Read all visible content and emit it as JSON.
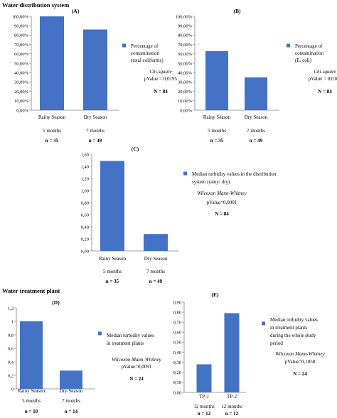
{
  "sections": {
    "distribution": "Water distribution system",
    "treatment": "Water treatment plant"
  },
  "chart_data": [
    {
      "id": "A",
      "type": "bar",
      "title": "(A)",
      "categories": [
        "Rainy Season",
        "Dry Season"
      ],
      "sublabels": [
        "5 months",
        "7 months"
      ],
      "counts": [
        "n = 35",
        "n = 49"
      ],
      "values": [
        1.0,
        0.86
      ],
      "ylim": [
        0,
        1.0
      ],
      "yticks": [
        "0,00%",
        "10,00%",
        "20,00%",
        "30,00%",
        "40,00%",
        "50,00%",
        "60,00%",
        "70,00%",
        "80,00%",
        "90,00%",
        "100,00%"
      ],
      "legend": [
        "Percentage of",
        "contamination",
        "(total coliforms)"
      ],
      "test": "Chi-square",
      "pvalue": "pValue = 0,0195",
      "total": "N = 84",
      "color": "#4472c4"
    },
    {
      "id": "B",
      "type": "bar",
      "title": "(B)",
      "categories": [
        "Rainy Season",
        "Dry Season"
      ],
      "sublabels": [
        "5 months",
        "7 months"
      ],
      "counts": [
        "n = 35",
        "n = 49"
      ],
      "values": [
        0.63,
        0.35
      ],
      "ylim": [
        0,
        1.0
      ],
      "yticks": [
        "0,00%",
        "10,00%",
        "20,00%",
        "30,00%",
        "40,00%",
        "50,00%",
        "60,00%",
        "70,00%",
        "80,00%",
        "90,00%",
        "100,00%"
      ],
      "legend": [
        "Percentage of",
        "contamination",
        "(E. coli)"
      ],
      "test": "Chi-square",
      "pvalue": "pValue = 0,0107",
      "total": "N = 84",
      "color": "#4472c4"
    },
    {
      "id": "C",
      "type": "bar",
      "title": "(C)",
      "categories": [
        "Rainy Season",
        "Dry Season"
      ],
      "sublabels": [
        "5 months",
        "7 months"
      ],
      "counts": [
        "n = 35",
        "n = 49"
      ],
      "values": [
        1.49,
        0.28
      ],
      "ylim": [
        0,
        1.6
      ],
      "yticks": [
        "0,00",
        "0,20",
        "0,40",
        "0,60",
        "0,80",
        "1,00",
        "1,20",
        "1,40",
        "1,60"
      ],
      "legend": [
        "Median turbidity values in the distribution",
        "system (rainy/ dry)"
      ],
      "test": "Wilcoxon Mann-Whitney",
      "pvalue": "pValue=0,0001",
      "total": "N = 84",
      "color": "#4472c4"
    },
    {
      "id": "D",
      "type": "bar",
      "title": "(D)",
      "categories": [
        "Rainy Season",
        "Dry Season"
      ],
      "sublabels": [
        "5 months",
        "7 months"
      ],
      "counts": [
        "n = 10",
        "n = 14"
      ],
      "values": [
        1.0,
        0.27
      ],
      "ylim": [
        0,
        1.2
      ],
      "yticks": [
        "0",
        "0,2",
        "0,4",
        "0,6",
        "0,8",
        "1",
        "1,2"
      ],
      "legend": [
        "Median turbidity values",
        "in treatment plants"
      ],
      "test": "Wilcoxon Mann-Whitney",
      "pvalue": "pValue=0,0091",
      "total": "N = 24",
      "color": "#4472c4"
    },
    {
      "id": "E",
      "type": "bar",
      "title": "(E)",
      "categories": [
        "TP-1",
        "TP-2"
      ],
      "sublabels": [
        "12 months",
        "12 months"
      ],
      "counts": [
        "n = 12",
        "n = 12"
      ],
      "values": [
        0.28,
        0.79
      ],
      "ylim": [
        0,
        0.9
      ],
      "yticks": [
        "0,00",
        "0,10",
        "0,20",
        "0,30",
        "0,40",
        "0,50",
        "0,60",
        "0,70",
        "0,80",
        "0,90"
      ],
      "legend": [
        "Median turbidity values",
        "in treatment plants",
        "during the whole study",
        "period"
      ],
      "test": "Wilcoxon Mann-Whitney",
      "pvalue": "pValue=0,1058",
      "total": "N = 24",
      "color": "#4472c4"
    }
  ]
}
